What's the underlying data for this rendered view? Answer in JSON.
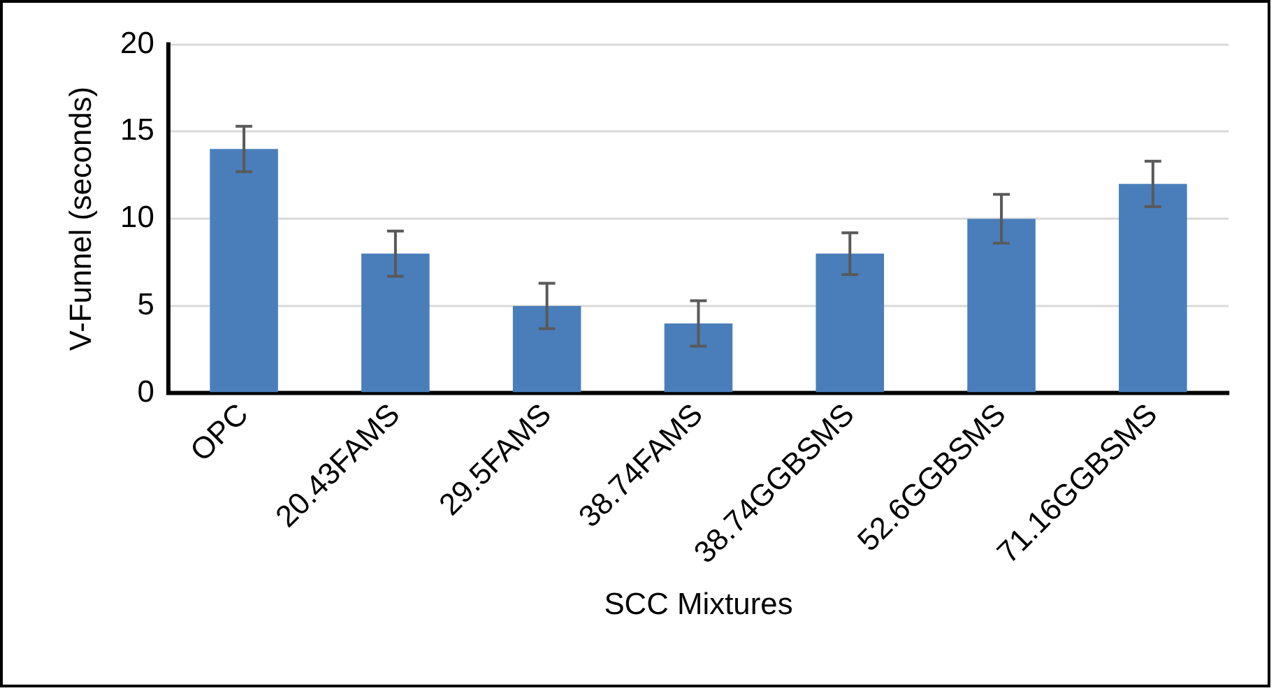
{
  "chart_data": {
    "type": "bar",
    "xlabel": "SCC Mixtures",
    "ylabel": "V-Funnel (seconds)",
    "categories": [
      "OPC",
      "20.43FAMS",
      "29.5FAMS",
      "38.74FAMS",
      "38.74GGBSMS",
      "52.6GGBSMS",
      "71.16GGBSMS"
    ],
    "values": [
      14,
      8,
      5,
      4,
      8,
      10,
      12
    ],
    "errors": [
      1.3,
      1.3,
      1.3,
      1.3,
      1.2,
      1.4,
      1.3
    ],
    "color": "#4a7ebb",
    "ylim": [
      0,
      20
    ],
    "yticks": [
      0,
      5,
      10,
      15,
      20
    ],
    "grid": "y",
    "legend": false
  }
}
